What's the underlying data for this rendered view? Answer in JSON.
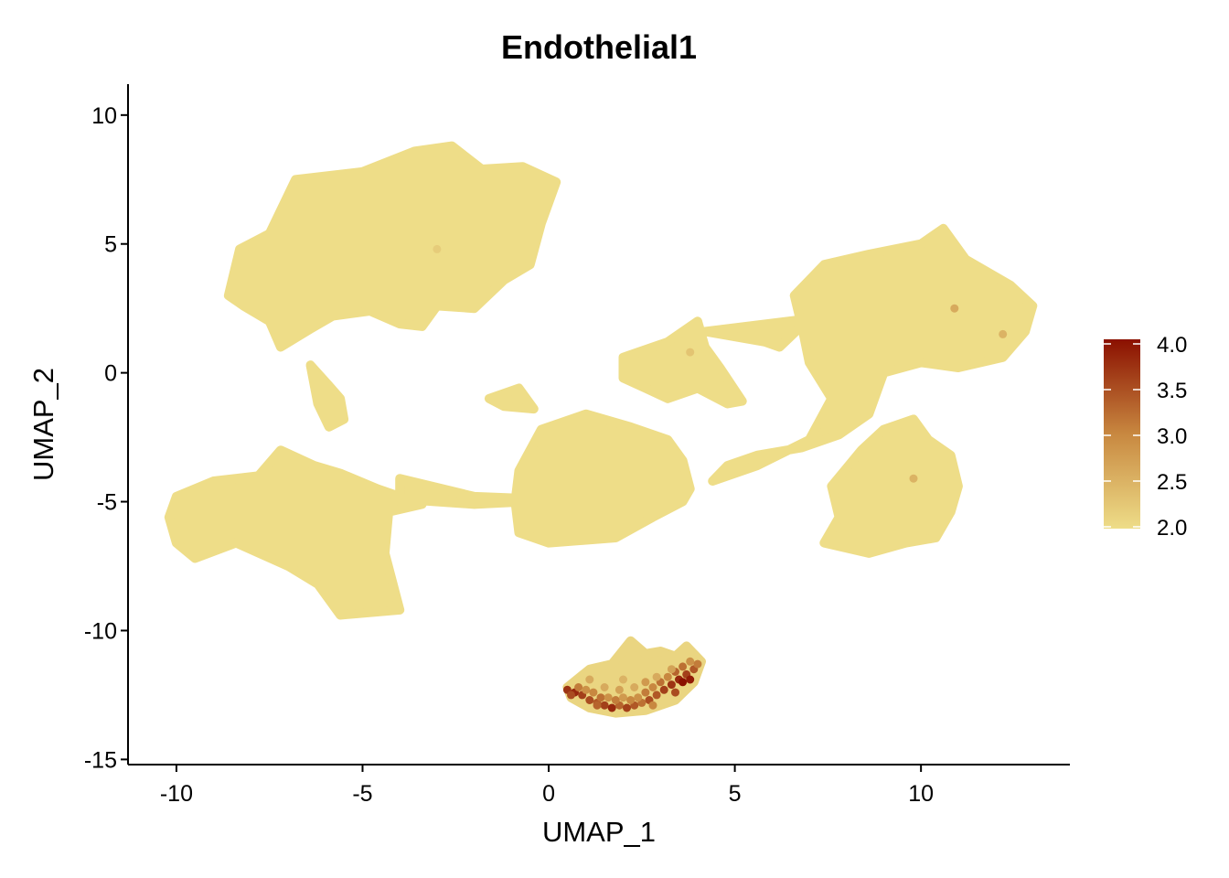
{
  "chart_data": {
    "type": "scatter",
    "title": "Endothelial1",
    "xlabel": "UMAP_1",
    "ylabel": "UMAP_2",
    "xlim": [
      -11.3,
      14.0
    ],
    "ylim": [
      -15.2,
      11.2
    ],
    "x_ticks": [
      -10,
      -5,
      0,
      5,
      10
    ],
    "x_tick_labels": [
      "-10",
      "-5",
      "0",
      "5",
      "10"
    ],
    "y_ticks": [
      -15,
      -10,
      -5,
      0,
      5,
      10
    ],
    "y_tick_labels": [
      "-15",
      "-10",
      "-5",
      "0",
      "5",
      "10"
    ],
    "grid": false,
    "legend_position": "right",
    "color_scale": {
      "min": 2.0,
      "max": 4.0,
      "low_color": "#EEDD88",
      "mid_color": "#C88840",
      "high_color": "#8B1000",
      "ticks": [
        2.0,
        2.5,
        3.0,
        3.5,
        4.0
      ],
      "tick_labels": [
        "2.0",
        "2.5",
        "3.0",
        "3.5",
        "4.0"
      ]
    },
    "series": [
      {
        "clusters": [
          {
            "outline": [
              [
                -8.6,
                3.0
              ],
              [
                -8.3,
                4.8
              ],
              [
                -7.5,
                5.4
              ],
              [
                -6.8,
                7.5
              ],
              [
                -5.0,
                7.8
              ],
              [
                -3.6,
                8.6
              ],
              [
                -2.6,
                8.8
              ],
              [
                -1.8,
                7.9
              ],
              [
                -0.7,
                8.0
              ],
              [
                0.2,
                7.4
              ],
              [
                -0.2,
                5.8
              ],
              [
                -0.5,
                4.2
              ],
              [
                -1.2,
                3.6
              ],
              [
                -2.0,
                2.5
              ],
              [
                -3.0,
                2.6
              ],
              [
                -3.4,
                1.8
              ],
              [
                -4.0,
                1.9
              ],
              [
                -4.8,
                2.4
              ],
              [
                -5.8,
                2.2
              ],
              [
                -6.4,
                1.7
              ],
              [
                -7.2,
                1.0
              ],
              [
                -7.5,
                2.0
              ],
              [
                -8.2,
                2.6
              ]
            ],
            "value": 2.0
          },
          {
            "outline": [
              [
                -6.4,
                0.3
              ],
              [
                -5.9,
                -0.5
              ],
              [
                -5.6,
                -1.0
              ],
              [
                -5.5,
                -1.8
              ],
              [
                -5.9,
                -2.1
              ],
              [
                -6.2,
                -1.2
              ]
            ],
            "value": 2.0
          },
          {
            "outline": [
              [
                -10.0,
                -4.8
              ],
              [
                -9.0,
                -4.2
              ],
              [
                -7.8,
                -4.0
              ],
              [
                -7.2,
                -3.0
              ],
              [
                -6.3,
                -3.6
              ],
              [
                -5.6,
                -3.9
              ],
              [
                -4.6,
                -4.5
              ],
              [
                -3.4,
                -5.1
              ],
              [
                -4.3,
                -5.4
              ],
              [
                -4.4,
                -7.0
              ],
              [
                -4.0,
                -9.2
              ],
              [
                -5.6,
                -9.4
              ],
              [
                -6.2,
                -8.2
              ],
              [
                -7.0,
                -7.5
              ],
              [
                -8.4,
                -6.6
              ],
              [
                -9.5,
                -7.2
              ],
              [
                -10.0,
                -6.6
              ],
              [
                -10.2,
                -5.6
              ]
            ],
            "value": 2.0
          },
          {
            "outline": [
              [
                -4.0,
                -4.1
              ],
              [
                -2.0,
                -4.8
              ],
              [
                -0.2,
                -4.9
              ],
              [
                -0.6,
                -5.0
              ],
              [
                -2.0,
                -5.1
              ],
              [
                -4.0,
                -4.9
              ]
            ],
            "value": 2.0
          },
          {
            "outline": [
              [
                -1.6,
                -1.0
              ],
              [
                -0.8,
                -0.6
              ],
              [
                -0.4,
                -1.4
              ],
              [
                -1.2,
                -1.3
              ]
            ],
            "value": 2.0
          },
          {
            "outline": [
              [
                -0.8,
                -3.8
              ],
              [
                -0.2,
                -2.2
              ],
              [
                1.0,
                -1.6
              ],
              [
                2.2,
                -2.1
              ],
              [
                3.2,
                -2.6
              ],
              [
                3.6,
                -3.4
              ],
              [
                3.8,
                -4.5
              ],
              [
                3.6,
                -5.0
              ],
              [
                2.8,
                -5.6
              ],
              [
                1.8,
                -6.4
              ],
              [
                0.0,
                -6.6
              ],
              [
                -0.8,
                -6.2
              ],
              [
                -0.9,
                -5.0
              ]
            ],
            "value": 2.0
          },
          {
            "outline": [
              [
                2.0,
                0.6
              ],
              [
                3.2,
                1.2
              ],
              [
                4.0,
                2.0
              ],
              [
                4.2,
                1.0
              ],
              [
                4.6,
                0.2
              ],
              [
                5.2,
                -1.1
              ],
              [
                4.8,
                -1.2
              ],
              [
                4.0,
                -0.6
              ],
              [
                3.2,
                -1.0
              ],
              [
                2.6,
                -0.6
              ],
              [
                2.0,
                -0.2
              ]
            ],
            "value": 2.0
          },
          {
            "outline": [
              [
                4.2,
                1.6
              ],
              [
                7.0,
                2.1
              ],
              [
                6.2,
                1.0
              ],
              [
                5.8,
                1.2
              ]
            ],
            "value": 2.0
          },
          {
            "outline": [
              [
                6.6,
                3.0
              ],
              [
                7.4,
                4.2
              ],
              [
                8.6,
                4.6
              ],
              [
                10.0,
                5.0
              ],
              [
                10.6,
                5.6
              ],
              [
                11.2,
                4.4
              ],
              [
                12.4,
                3.4
              ],
              [
                13.0,
                2.6
              ],
              [
                12.8,
                1.6
              ],
              [
                12.2,
                0.6
              ],
              [
                11.0,
                0.2
              ],
              [
                10.0,
                0.4
              ],
              [
                9.0,
                0.0
              ],
              [
                8.6,
                -1.6
              ],
              [
                7.8,
                -2.4
              ],
              [
                6.8,
                -2.9
              ],
              [
                5.6,
                -3.2
              ],
              [
                4.8,
                -3.6
              ],
              [
                4.4,
                -4.2
              ],
              [
                5.6,
                -3.6
              ],
              [
                7.0,
                -2.6
              ],
              [
                7.6,
                -1.0
              ],
              [
                7.0,
                0.4
              ],
              [
                6.8,
                1.8
              ]
            ],
            "value": 2.0
          },
          {
            "outline": [
              [
                7.6,
                -4.4
              ],
              [
                8.4,
                -3.0
              ],
              [
                9.0,
                -2.2
              ],
              [
                9.8,
                -1.8
              ],
              [
                10.2,
                -2.6
              ],
              [
                10.8,
                -3.2
              ],
              [
                11.0,
                -4.4
              ],
              [
                10.8,
                -5.4
              ],
              [
                10.4,
                -6.4
              ],
              [
                9.6,
                -6.6
              ],
              [
                8.6,
                -7.0
              ],
              [
                7.4,
                -6.6
              ],
              [
                7.8,
                -5.6
              ]
            ],
            "value": 2.0
          },
          {
            "outline": [
              [
                0.5,
                -12.2
              ],
              [
                1.1,
                -11.5
              ],
              [
                1.7,
                -11.3
              ],
              [
                2.2,
                -10.4
              ],
              [
                2.6,
                -10.9
              ],
              [
                3.0,
                -10.8
              ],
              [
                3.4,
                -11.0
              ],
              [
                3.7,
                -10.6
              ],
              [
                4.1,
                -11.2
              ],
              [
                3.9,
                -12.0
              ],
              [
                3.4,
                -12.7
              ],
              [
                2.6,
                -13.1
              ],
              [
                1.8,
                -13.2
              ],
              [
                1.1,
                -13.0
              ],
              [
                0.6,
                -12.6
              ]
            ],
            "value": 2.1
          }
        ]
      },
      {
        "points": [
          [
            0.5,
            -12.3,
            3.7
          ],
          [
            0.7,
            -12.4,
            3.8
          ],
          [
            0.9,
            -12.5,
            3.6
          ],
          [
            1.1,
            -12.7,
            3.5
          ],
          [
            1.3,
            -12.8,
            3.4
          ],
          [
            1.5,
            -12.9,
            3.6
          ],
          [
            1.7,
            -13.0,
            3.8
          ],
          [
            1.9,
            -12.9,
            3.3
          ],
          [
            2.1,
            -13.0,
            3.6
          ],
          [
            2.3,
            -12.9,
            3.4
          ],
          [
            2.5,
            -12.8,
            3.2
          ],
          [
            2.7,
            -12.7,
            3.5
          ],
          [
            2.9,
            -12.5,
            3.4
          ],
          [
            3.1,
            -12.3,
            3.6
          ],
          [
            3.3,
            -12.1,
            3.7
          ],
          [
            3.5,
            -11.9,
            3.8
          ],
          [
            3.6,
            -12.0,
            4.0
          ],
          [
            3.7,
            -11.7,
            3.6
          ],
          [
            3.9,
            -11.5,
            3.4
          ],
          [
            4.0,
            -11.3,
            3.1
          ],
          [
            0.8,
            -12.2,
            3.1
          ],
          [
            1.0,
            -12.3,
            2.9
          ],
          [
            1.2,
            -12.4,
            3.0
          ],
          [
            1.4,
            -12.6,
            3.2
          ],
          [
            1.6,
            -12.6,
            2.9
          ],
          [
            1.8,
            -12.7,
            3.1
          ],
          [
            2.0,
            -12.6,
            2.8
          ],
          [
            2.2,
            -12.7,
            3.0
          ],
          [
            2.4,
            -12.6,
            2.9
          ],
          [
            2.6,
            -12.4,
            3.1
          ],
          [
            2.8,
            -12.2,
            3.0
          ],
          [
            3.0,
            -12.0,
            3.2
          ],
          [
            3.2,
            -11.8,
            3.0
          ],
          [
            3.4,
            -11.6,
            3.3
          ],
          [
            3.6,
            -11.4,
            3.2
          ],
          [
            3.8,
            -11.2,
            2.9
          ],
          [
            1.5,
            -12.2,
            2.6
          ],
          [
            1.9,
            -12.3,
            2.7
          ],
          [
            2.3,
            -12.2,
            2.6
          ],
          [
            2.6,
            -12.0,
            2.8
          ],
          [
            2.9,
            -11.8,
            2.6
          ],
          [
            3.3,
            -11.5,
            2.7
          ],
          [
            1.1,
            -11.9,
            2.6
          ],
          [
            2.0,
            -11.9,
            2.5
          ],
          [
            0.6,
            -12.5,
            3.5
          ],
          [
            1.3,
            -12.9,
            3.3
          ],
          [
            2.8,
            -12.9,
            3.0
          ],
          [
            3.4,
            -12.4,
            3.5
          ],
          [
            3.8,
            -11.9,
            3.9
          ],
          [
            10.9,
            2.5,
            2.6
          ],
          [
            12.2,
            1.5,
            2.5
          ],
          [
            9.8,
            -4.1,
            2.5
          ],
          [
            3.8,
            0.8,
            2.3
          ],
          [
            -3.0,
            4.8,
            2.2
          ]
        ]
      }
    ]
  }
}
